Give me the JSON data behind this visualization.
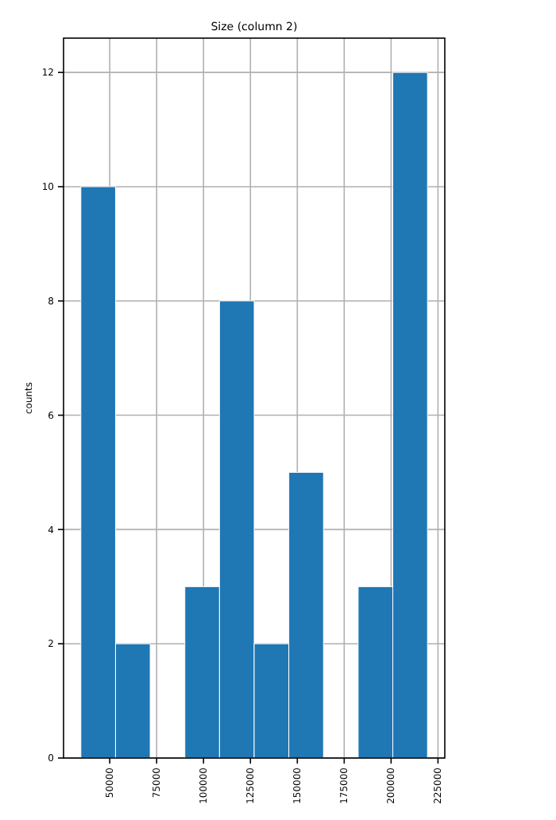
{
  "chart_data": {
    "type": "histogram",
    "title": "Size (column 2)",
    "ylabel": "counts",
    "bins": [
      34600,
      53080,
      71560,
      90040,
      108520,
      127000,
      145480,
      163960,
      182440,
      200920,
      219400
    ],
    "values": [
      10,
      2,
      0,
      3,
      8,
      2,
      5,
      0,
      3,
      12
    ],
    "color": "#1f77b4",
    "xlim": [
      25360,
      228640
    ],
    "xticks": [
      50000,
      75000,
      100000,
      125000,
      150000,
      175000,
      200000,
      225000
    ],
    "ylim": [
      0,
      12.6
    ],
    "yticks": [
      0,
      2,
      4,
      6,
      8,
      10,
      12
    ],
    "grid": true
  }
}
